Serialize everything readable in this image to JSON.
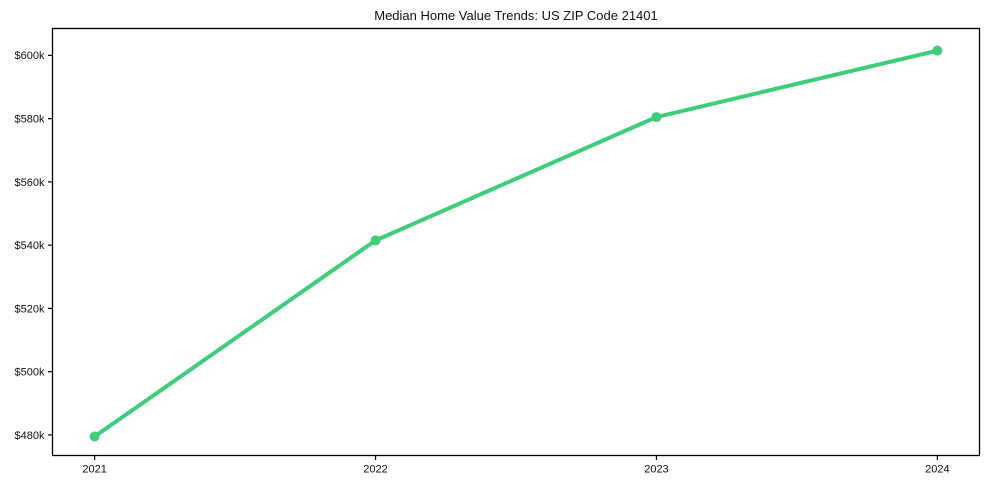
{
  "chart_data": {
    "type": "line",
    "title": "Median Home Value Trends: US ZIP Code 21401",
    "x": [
      2021,
      2022,
      2023,
      2024
    ],
    "series": [
      {
        "name": "Median Home Value",
        "values": [
          479.5,
          541.5,
          580.5,
          601.5
        ]
      }
    ],
    "unit": "USD thousands",
    "xlabel": "",
    "ylabel": "",
    "xlim": [
      2020.85,
      2024.15
    ],
    "ylim": [
      473.5,
      608.5
    ],
    "xticks": [
      2021,
      2022,
      2023,
      2024
    ],
    "xtick_labels": [
      "2021",
      "2022",
      "2023",
      "2024"
    ],
    "yticks": [
      480,
      500,
      520,
      540,
      560,
      580,
      600
    ],
    "ytick_labels": [
      "$480k",
      "$500k",
      "$520k",
      "$540k",
      "$560k",
      "$580k",
      "$600k"
    ],
    "grid": false,
    "legend": "none",
    "line_color": "#3ecd7a",
    "frame_color": "#000000",
    "text_color": "#111111",
    "line_width": 4,
    "marker": "circle",
    "marker_radius": 5
  }
}
